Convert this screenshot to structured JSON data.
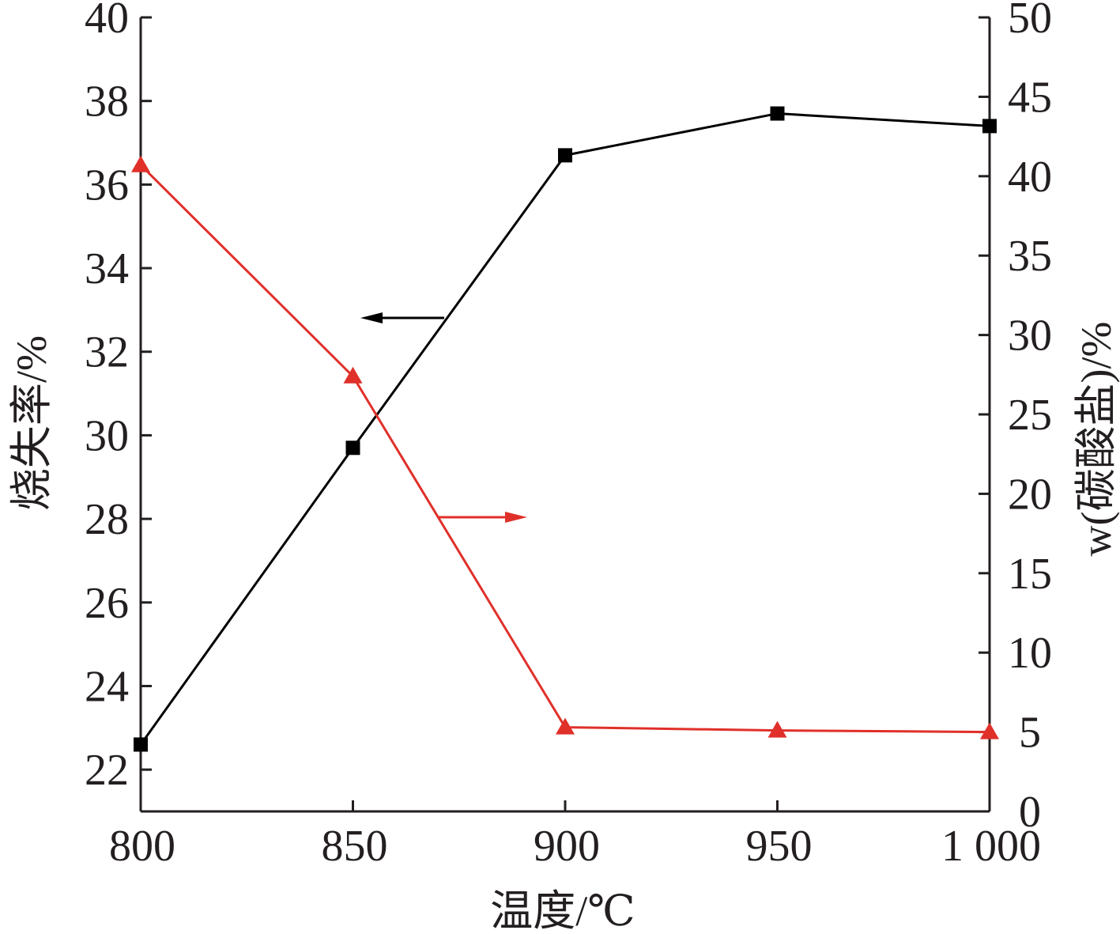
{
  "chart_data": {
    "type": "line",
    "title": "",
    "xlabel": "温度/℃",
    "ylabel": "烧失率/%",
    "ylabel_right": "w(碳酸盐)/%",
    "xlim": [
      800,
      1000
    ],
    "ylim": [
      21,
      40
    ],
    "ylim_right": [
      0,
      50
    ],
    "x_ticks": [
      800,
      850,
      900,
      950,
      1000
    ],
    "x_tick_labels": [
      "800",
      "850",
      "900",
      "950",
      "1 000"
    ],
    "y_ticks": [
      22,
      24,
      26,
      28,
      30,
      32,
      34,
      36,
      38,
      40
    ],
    "y_tick_labels": [
      "22",
      "24",
      "26",
      "28",
      "30",
      "32",
      "34",
      "36",
      "38",
      "40"
    ],
    "y_right_ticks": [
      0,
      5,
      10,
      15,
      20,
      25,
      30,
      35,
      40,
      45,
      50
    ],
    "y_right_tick_labels": [
      "0",
      "5",
      "10",
      "15",
      "20",
      "25",
      "30",
      "35",
      "40",
      "45",
      "50"
    ],
    "grid": false,
    "series": [
      {
        "axis": "left",
        "marker": "square",
        "color": "#000000",
        "x": [
          800,
          850,
          900,
          950,
          1000
        ],
        "y": [
          22.6,
          29.7,
          36.7,
          37.7,
          37.4
        ]
      },
      {
        "axis": "right",
        "marker": "triangle",
        "color": "#e0302a",
        "x": [
          800,
          850,
          900,
          950,
          1000
        ],
        "y": [
          40.7,
          27.4,
          5.3,
          5.1,
          5.0
        ]
      }
    ],
    "annotations": [
      {
        "type": "arrow",
        "series_index": 0,
        "direction": "left",
        "color": "#000000"
      },
      {
        "type": "arrow",
        "series_index": 1,
        "direction": "right",
        "color": "#e0302a"
      }
    ]
  }
}
